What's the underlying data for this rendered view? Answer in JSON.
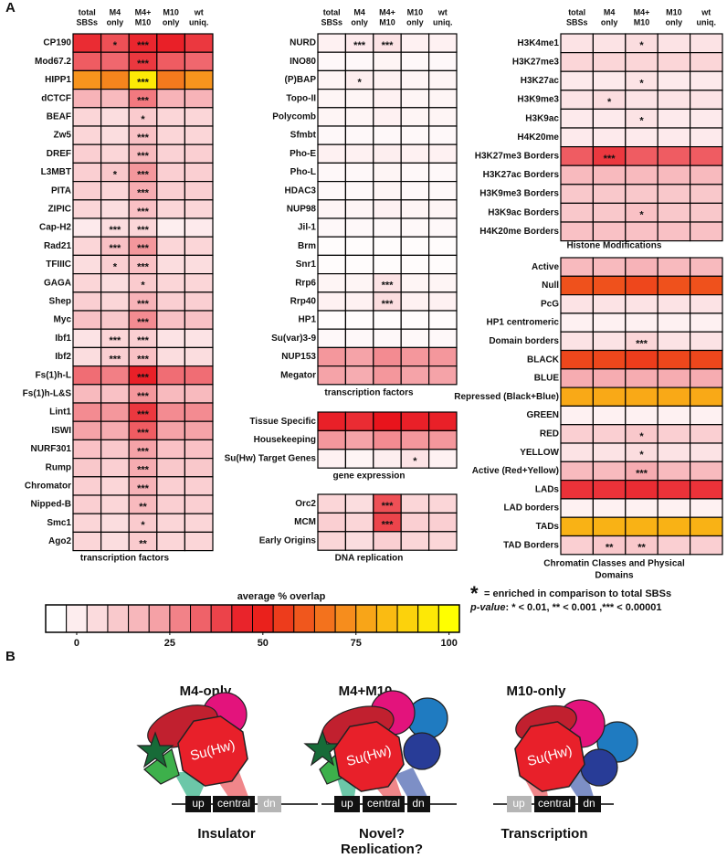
{
  "panel_label": "A",
  "chart_data": [
    {
      "type": "heatmap",
      "title": [
        "transcription factors"
      ],
      "columns": [
        [
          "total",
          "SBSs"
        ],
        [
          "M4",
          "only"
        ],
        [
          "M4+",
          "M10"
        ],
        [
          "M10",
          "only"
        ],
        [
          "wt",
          "uniq."
        ]
      ],
      "rows": [
        "CP190",
        "Mod67.2",
        "HIPP1",
        "dCTCF",
        "BEAF",
        "Zw5",
        "DREF",
        "L3MBT",
        "PITA",
        "ZIPIC",
        "Cap-H2",
        "Rad21",
        "TFIIIC",
        "GAGA",
        "Shep",
        "Myc",
        "Ibf1",
        "Ibf2",
        "Fs(1)h-L",
        "Fs(1)h-L&S",
        "Lint1",
        "ISWI",
        "NURF301",
        "Rump",
        "Chromator",
        "Nipped-B",
        "Smc1",
        "Ago2"
      ],
      "values": [
        [
          46,
          40,
          47,
          48,
          44
        ],
        [
          38,
          36,
          44,
          38,
          36
        ],
        [
          75,
          72,
          95,
          70,
          75
        ],
        [
          22,
          20,
          33,
          22,
          22
        ],
        [
          12,
          10,
          15,
          12,
          12
        ],
        [
          12,
          10,
          18,
          12,
          12
        ],
        [
          14,
          12,
          20,
          13,
          14
        ],
        [
          14,
          16,
          28,
          14,
          14
        ],
        [
          14,
          12,
          24,
          14,
          14
        ],
        [
          12,
          10,
          18,
          12,
          12
        ],
        [
          6,
          10,
          12,
          5,
          6
        ],
        [
          12,
          18,
          28,
          12,
          12
        ],
        [
          10,
          14,
          18,
          10,
          10
        ],
        [
          12,
          10,
          15,
          12,
          12
        ],
        [
          14,
          12,
          22,
          14,
          14
        ],
        [
          18,
          16,
          30,
          18,
          18
        ],
        [
          8,
          12,
          14,
          8,
          8
        ],
        [
          10,
          14,
          18,
          10,
          10
        ],
        [
          35,
          32,
          48,
          35,
          35
        ],
        [
          20,
          18,
          28,
          20,
          20
        ],
        [
          30,
          28,
          44,
          30,
          30
        ],
        [
          26,
          24,
          38,
          26,
          26
        ],
        [
          18,
          16,
          26,
          18,
          18
        ],
        [
          16,
          14,
          24,
          16,
          16
        ],
        [
          14,
          12,
          22,
          14,
          14
        ],
        [
          14,
          12,
          20,
          14,
          14
        ],
        [
          12,
          10,
          15,
          12,
          12
        ],
        [
          12,
          10,
          15,
          12,
          12
        ]
      ],
      "stars": [
        [
          null,
          "*",
          "***",
          null,
          null
        ],
        [
          null,
          null,
          "***",
          null,
          null
        ],
        [
          null,
          null,
          "***",
          null,
          null
        ],
        [
          null,
          null,
          "***",
          null,
          null
        ],
        [
          null,
          null,
          "*",
          null,
          null
        ],
        [
          null,
          null,
          "***",
          null,
          null
        ],
        [
          null,
          null,
          "***",
          null,
          null
        ],
        [
          null,
          "*",
          "***",
          null,
          null
        ],
        [
          null,
          null,
          "***",
          null,
          null
        ],
        [
          null,
          null,
          "***",
          null,
          null
        ],
        [
          null,
          "***",
          "***",
          null,
          null
        ],
        [
          null,
          "***",
          "***",
          null,
          null
        ],
        [
          null,
          "*",
          "***",
          null,
          null
        ],
        [
          null,
          null,
          "*",
          null,
          null
        ],
        [
          null,
          null,
          "***",
          null,
          null
        ],
        [
          null,
          null,
          "***",
          null,
          null
        ],
        [
          null,
          "***",
          "***",
          null,
          null
        ],
        [
          null,
          "***",
          "***",
          null,
          null
        ],
        [
          null,
          null,
          "***",
          null,
          null
        ],
        [
          null,
          null,
          "***",
          null,
          null
        ],
        [
          null,
          null,
          "***",
          null,
          null
        ],
        [
          null,
          null,
          "***",
          null,
          null
        ],
        [
          null,
          null,
          "***",
          null,
          null
        ],
        [
          null,
          null,
          "***",
          null,
          null
        ],
        [
          null,
          null,
          "***",
          null,
          null
        ],
        [
          null,
          null,
          "**",
          null,
          null
        ],
        [
          null,
          null,
          "*",
          null,
          null
        ],
        [
          null,
          null,
          "**",
          null,
          null
        ]
      ]
    },
    {
      "type": "heatmap",
      "title": [
        "transcription factors"
      ],
      "columns": [
        [
          "total",
          "SBSs"
        ],
        [
          "M4",
          "only"
        ],
        [
          "M4+",
          "M10"
        ],
        [
          "M10",
          "only"
        ],
        [
          "wt",
          "uniq."
        ]
      ],
      "rows": [
        "NURD",
        "INO80",
        "(P)BAP",
        "Topo-II",
        "Polycomb",
        "Sfmbt",
        "Pho-E",
        "Pho-L",
        "HDAC3",
        "NUP98",
        "Jil-1",
        "Brm",
        "Snr1",
        "Rrp6",
        "Rrp40",
        "HP1",
        "Su(var)3-9",
        "NUP153",
        "Megator"
      ],
      "values": [
        [
          4,
          6,
          8,
          4,
          4
        ],
        [
          2,
          2,
          3,
          2,
          2
        ],
        [
          3,
          5,
          4,
          3,
          3
        ],
        [
          3,
          3,
          4,
          3,
          3
        ],
        [
          3,
          3,
          4,
          3,
          3
        ],
        [
          2,
          2,
          2,
          2,
          2
        ],
        [
          4,
          4,
          5,
          4,
          4
        ],
        [
          2,
          2,
          3,
          2,
          2
        ],
        [
          2,
          2,
          3,
          2,
          2
        ],
        [
          3,
          3,
          4,
          3,
          3
        ],
        [
          2,
          2,
          2,
          2,
          2
        ],
        [
          1,
          1,
          1,
          1,
          1
        ],
        [
          1,
          1,
          1,
          1,
          1
        ],
        [
          3,
          3,
          8,
          3,
          3
        ],
        [
          4,
          4,
          10,
          4,
          4
        ],
        [
          1,
          1,
          1,
          1,
          1
        ],
        [
          2,
          2,
          2,
          2,
          2
        ],
        [
          28,
          26,
          30,
          28,
          28
        ],
        [
          26,
          24,
          28,
          26,
          26
        ]
      ],
      "stars": [
        [
          null,
          "***",
          "***",
          null,
          null
        ],
        [
          null,
          null,
          null,
          null,
          null
        ],
        [
          null,
          "*",
          null,
          null,
          null
        ],
        [
          null,
          null,
          null,
          null,
          null
        ],
        [
          null,
          null,
          null,
          null,
          null
        ],
        [
          null,
          null,
          null,
          null,
          null
        ],
        [
          null,
          null,
          null,
          null,
          null
        ],
        [
          null,
          null,
          null,
          null,
          null
        ],
        [
          null,
          null,
          null,
          null,
          null
        ],
        [
          null,
          null,
          null,
          null,
          null
        ],
        [
          null,
          null,
          null,
          null,
          null
        ],
        [
          null,
          null,
          null,
          null,
          null
        ],
        [
          null,
          null,
          null,
          null,
          null
        ],
        [
          null,
          null,
          "***",
          null,
          null
        ],
        [
          null,
          null,
          "***",
          null,
          null
        ],
        [
          null,
          null,
          null,
          null,
          null
        ],
        [
          null,
          null,
          null,
          null,
          null
        ],
        [
          null,
          null,
          null,
          null,
          null
        ],
        [
          null,
          null,
          null,
          null,
          null
        ]
      ]
    },
    {
      "type": "heatmap",
      "title": [
        "gene expression"
      ],
      "rows": [
        "Tissue Specific",
        "Housekeeping",
        "Su(Hw) Target Genes"
      ],
      "values": [
        [
          48,
          46,
          50,
          48,
          48
        ],
        [
          28,
          26,
          30,
          28,
          28
        ],
        [
          4,
          3,
          5,
          8,
          4
        ]
      ],
      "stars": [
        [
          null,
          null,
          null,
          null,
          null
        ],
        [
          null,
          null,
          null,
          null,
          null
        ],
        [
          null,
          null,
          null,
          "*",
          null
        ]
      ]
    },
    {
      "type": "heatmap",
      "title": [
        "DNA replication"
      ],
      "rows": [
        "Orc2",
        "MCM",
        "Early Origins"
      ],
      "values": [
        [
          12,
          10,
          40,
          12,
          12
        ],
        [
          14,
          12,
          42,
          14,
          14
        ],
        [
          12,
          10,
          14,
          12,
          12
        ]
      ],
      "stars": [
        [
          null,
          null,
          "***",
          null,
          null
        ],
        [
          null,
          null,
          "***",
          null,
          null
        ],
        [
          null,
          null,
          null,
          null,
          null
        ]
      ]
    },
    {
      "type": "heatmap",
      "title": [
        "Histone Modifications"
      ],
      "columns": [
        [
          "total",
          "SBSs"
        ],
        [
          "M4",
          "only"
        ],
        [
          "M4+",
          "M10"
        ],
        [
          "M10",
          "only"
        ],
        [
          "wt",
          "uniq."
        ]
      ],
      "rows": [
        "H3K4me1",
        "H3K27me3",
        "H3K27ac",
        "H3K9me3",
        "H3K9ac",
        "H4K20me",
        "H3K27me3 Borders",
        "H3K27ac Borders",
        "H3K9me3 Borders",
        "H3K9ac Borders",
        "H4K20me Borders"
      ],
      "values": [
        [
          8,
          8,
          10,
          8,
          8
        ],
        [
          12,
          12,
          12,
          12,
          12
        ],
        [
          6,
          6,
          8,
          6,
          6
        ],
        [
          8,
          10,
          8,
          8,
          8
        ],
        [
          6,
          6,
          8,
          6,
          6
        ],
        [
          6,
          6,
          6,
          6,
          6
        ],
        [
          38,
          44,
          38,
          38,
          38
        ],
        [
          20,
          20,
          20,
          20,
          20
        ],
        [
          16,
          16,
          16,
          16,
          16
        ],
        [
          16,
          16,
          18,
          16,
          16
        ],
        [
          18,
          18,
          18,
          18,
          18
        ]
      ],
      "stars": [
        [
          null,
          null,
          "*",
          null,
          null
        ],
        [
          null,
          null,
          null,
          null,
          null
        ],
        [
          null,
          null,
          "*",
          null,
          null
        ],
        [
          null,
          "*",
          null,
          null,
          null
        ],
        [
          null,
          null,
          "*",
          null,
          null
        ],
        [
          null,
          null,
          null,
          null,
          null
        ],
        [
          null,
          "***",
          null,
          null,
          null
        ],
        [
          null,
          null,
          null,
          null,
          null
        ],
        [
          null,
          null,
          null,
          null,
          null
        ],
        [
          null,
          null,
          "*",
          null,
          null
        ],
        [
          null,
          null,
          null,
          null,
          null
        ]
      ]
    },
    {
      "type": "heatmap",
      "title": [
        "Chromatin Classes and Physical",
        "Domains"
      ],
      "rows": [
        "Active",
        "Null",
        "PcG",
        "HP1 centromeric",
        "Domain borders",
        "BLACK",
        "BLUE",
        "Repressed (Black+Blue)",
        "GREEN",
        "RED",
        "YELLOW",
        "Active (Red+Yellow)",
        "LADs",
        "LAD borders",
        "TADs",
        "TAD Borders"
      ],
      "values": [
        [
          20,
          20,
          22,
          20,
          20
        ],
        [
          62,
          62,
          60,
          62,
          62
        ],
        [
          8,
          8,
          8,
          8,
          8
        ],
        [
          4,
          4,
          4,
          4,
          4
        ],
        [
          8,
          8,
          12,
          8,
          8
        ],
        [
          60,
          60,
          58,
          60,
          60
        ],
        [
          24,
          24,
          24,
          24,
          24
        ],
        [
          80,
          80,
          80,
          80,
          80
        ],
        [
          4,
          4,
          4,
          4,
          4
        ],
        [
          14,
          14,
          16,
          14,
          14
        ],
        [
          8,
          8,
          10,
          8,
          8
        ],
        [
          20,
          20,
          24,
          20,
          20
        ],
        [
          45,
          45,
          46,
          45,
          45
        ],
        [
          4,
          4,
          4,
          4,
          4
        ],
        [
          82,
          82,
          82,
          82,
          82
        ],
        [
          14,
          16,
          16,
          14,
          14
        ]
      ],
      "stars": [
        [
          null,
          null,
          null,
          null,
          null
        ],
        [
          null,
          null,
          null,
          null,
          null
        ],
        [
          null,
          null,
          null,
          null,
          null
        ],
        [
          null,
          null,
          null,
          null,
          null
        ],
        [
          null,
          null,
          "***",
          null,
          null
        ],
        [
          null,
          null,
          null,
          null,
          null
        ],
        [
          null,
          null,
          null,
          null,
          null
        ],
        [
          null,
          null,
          null,
          null,
          null
        ],
        [
          null,
          null,
          null,
          null,
          null
        ],
        [
          null,
          null,
          "*",
          null,
          null
        ],
        [
          null,
          null,
          "*",
          null,
          null
        ],
        [
          null,
          null,
          "***",
          null,
          null
        ],
        [
          null,
          null,
          null,
          null,
          null
        ],
        [
          null,
          null,
          null,
          null,
          null
        ],
        [
          null,
          null,
          null,
          null,
          null
        ],
        [
          null,
          "**",
          "**",
          null,
          null
        ]
      ]
    }
  ],
  "colorbar": {
    "title": "average % overlap",
    "lim": [
      0,
      100
    ],
    "ticks": [
      0,
      25,
      50,
      75,
      100
    ],
    "colors": [
      "#ffffff",
      "#f6a9ae",
      "#e8141c",
      "#f7941d",
      "#ffff00"
    ]
  },
  "legend": {
    "symbol": "*",
    "text": "= enriched in comparison to total SBSs",
    "pvalue_label": "p-value",
    "pvalue_text": ": * < 0.01, ** < 0.001 ,*** < 0.00001"
  },
  "diagram": {
    "label": "B",
    "panels": [
      {
        "title": "M4-only",
        "protein": "Su(Hw)",
        "boxes": [
          "up",
          "central",
          "dn"
        ],
        "caption": [
          "Insulator"
        ]
      },
      {
        "title": "M4+M10",
        "protein": "Su(Hw)",
        "boxes": [
          "up",
          "central",
          "dn"
        ],
        "caption": [
          "Novel?",
          "Replication?"
        ]
      },
      {
        "title": "M10-only",
        "protein": "Su(Hw)",
        "boxes": [
          "up",
          "central",
          "dn"
        ],
        "caption": [
          "Transcription"
        ]
      }
    ]
  }
}
